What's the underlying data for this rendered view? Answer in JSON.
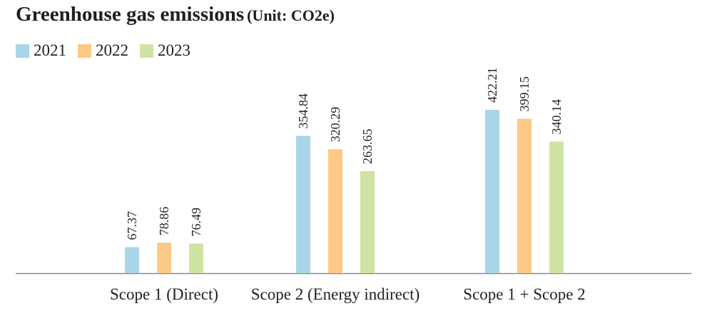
{
  "title": "Greenhouse gas emissions",
  "unit": "(Unit: CO2e)",
  "colors": {
    "2021": "#a9d5e8",
    "2022": "#fdc987",
    "2023": "#cfe3a2",
    "axis": "#8a8a8a"
  },
  "chart_data": {
    "type": "bar",
    "title": "Greenhouse gas emissions",
    "subtitle": "(Unit: CO2e)",
    "categories": [
      "Scope 1 (Direct)",
      "Scope 2 (Energy indirect)",
      "Scope 1 + Scope 2"
    ],
    "series": [
      {
        "name": "2021",
        "values": [
          67.37,
          354.84,
          422.21
        ]
      },
      {
        "name": "2022",
        "values": [
          78.86,
          320.29,
          399.15
        ]
      },
      {
        "name": "2023",
        "values": [
          76.49,
          263.65,
          340.14
        ]
      }
    ],
    "ylim": [
      0,
      500
    ],
    "grid": false,
    "legend": "top-left"
  }
}
